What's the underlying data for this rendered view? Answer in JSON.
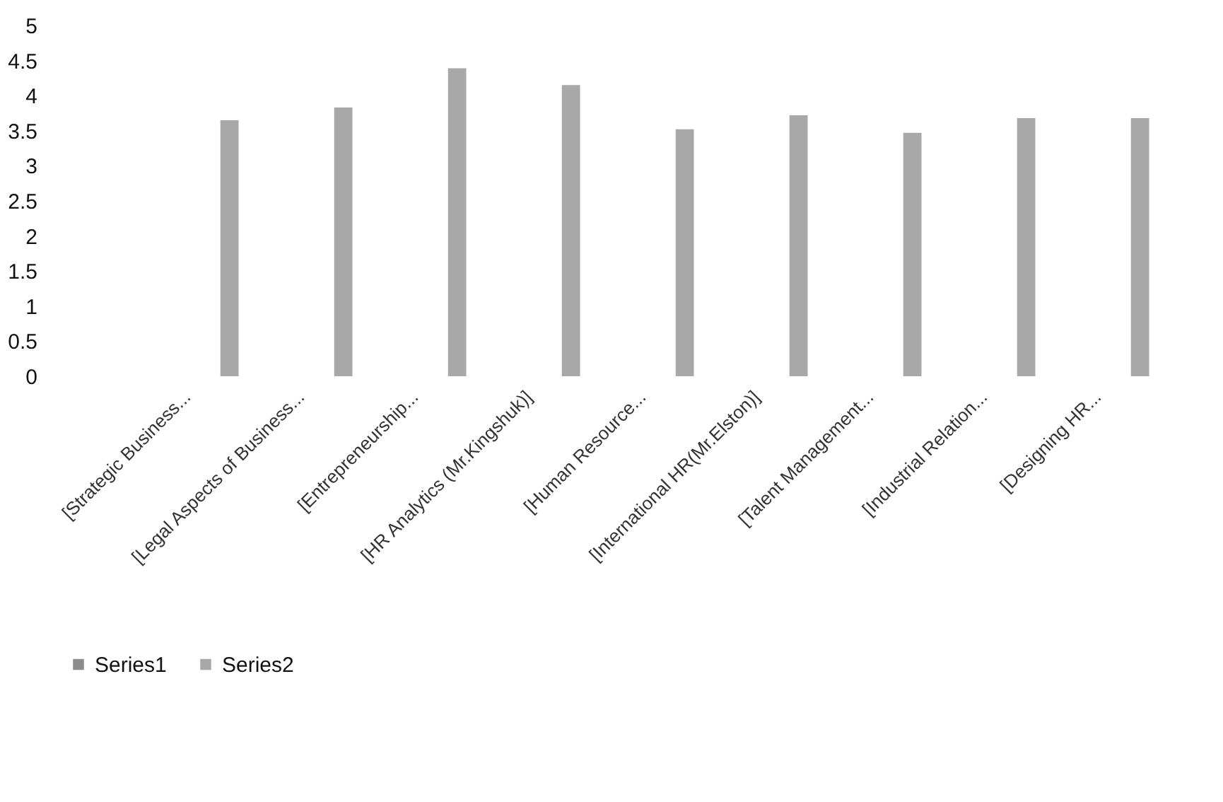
{
  "chart_data": {
    "type": "bar",
    "categories": [
      "[Strategic Business...",
      "[Legal Aspects of Business...",
      "[Entrepreneurship...",
      "[HR Analytics (Mr.Kingshuk)]",
      "[Human Resource...",
      "[International HR(Mr.Elston)]",
      "[Talent Management...",
      "[Industrial Relation...",
      "[Designing HR..."
    ],
    "series": [
      {
        "name": "Series1",
        "color": "#8c8c8c",
        "values": [
          null,
          null,
          null,
          null,
          null,
          null,
          null,
          null,
          null
        ]
      },
      {
        "name": "Series2",
        "color": "#a8a8a8",
        "values": [
          3.65,
          3.83,
          4.39,
          4.15,
          3.52,
          3.72,
          3.47,
          3.68,
          3.68
        ]
      }
    ],
    "ylim": [
      0,
      5
    ],
    "yticks": [
      0,
      0.5,
      1,
      1.5,
      2,
      2.5,
      3,
      3.5,
      4,
      4.5,
      5
    ],
    "grid": false,
    "legend": "bottom"
  }
}
